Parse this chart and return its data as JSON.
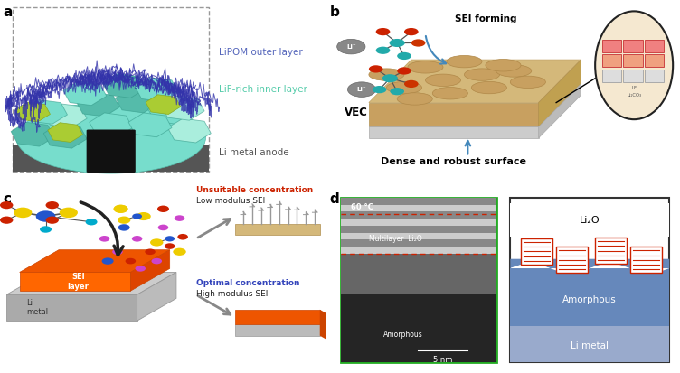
{
  "fig_width": 7.52,
  "fig_height": 4.13,
  "dpi": 100,
  "background_color": "#ffffff",
  "panel_label_fontsize": 11,
  "panel_label_weight": "bold",
  "panel_a": {
    "label_texts": [
      "LiPOM outer layer",
      "LiF-rich inner layer",
      "Li metal anode"
    ],
    "label_colors": [
      "#5566bb",
      "#55ccaa",
      "#555555"
    ],
    "outer_line_color": "#3333aa",
    "inner_hex_color": "#88ddcc",
    "inner_hex_edge": "#44aa88",
    "yellow_hex_color": "#ccdd44",
    "base_color": "#555555",
    "dashed_box_color": "#999999",
    "pillar_color": "#222222"
  },
  "panel_b": {
    "surface_top_color": "#d4b87a",
    "surface_side_color": "#c8a060",
    "base_top_color": "#cccccc",
    "base_side_color": "#bbbbbb",
    "bump_color": "#c8a060",
    "bump_edge_color": "#b08040",
    "li_ion_color": "#888888",
    "label_vec": "VEC",
    "label_forming": "SEI forming",
    "label_dense": "Dense and robust surface",
    "arrow_color": "#4488bb",
    "circle_bg": "#f5e8d0",
    "circle_edge": "#333333",
    "pink_color": "#f08080",
    "gray_color": "#cccccc",
    "orange_color": "#e8a060"
  },
  "panel_c": {
    "li_metal_color": "#cccccc",
    "li_metal_side": "#aaaaaa",
    "sei_top_color": "#dd5500",
    "sei_front_color": "#ee6600",
    "sei_right_color": "#cc4400",
    "arrow_color": "#222222",
    "unsuitable_color": "#cc2200",
    "optimal_color": "#3344bb",
    "unsuitable_text": "Unsuitable concentration",
    "unsuitable_sub": "Low modulus SEI",
    "optimal_text": "Optimal concentration",
    "optimal_sub": "High modulus SEI",
    "sandy_color": "#d4b87a",
    "spike_color": "#888888",
    "high_sei_color": "#dd5500",
    "high_base_color": "#cccccc"
  },
  "panel_d": {
    "tem_border_color": "#22aa22",
    "diagram_border_color": "#333333",
    "amorphous_blue": "#6688bb",
    "li_metal_blue": "#99aacc",
    "stripe_color": "#cc2200",
    "tem_top_gray": "#aaaaaa",
    "tem_mid_gray": "#666666",
    "tem_bot_dark": "#252525",
    "label_60C": "60 °C",
    "label_multilayer": "Multilayer  Li₂O",
    "label_amorphous_tem": "Amorphous",
    "label_5nm": "5 nm",
    "label_li2o": "Li₂O",
    "label_amorphous": "Amorphous",
    "label_limetal": "Li metal"
  }
}
